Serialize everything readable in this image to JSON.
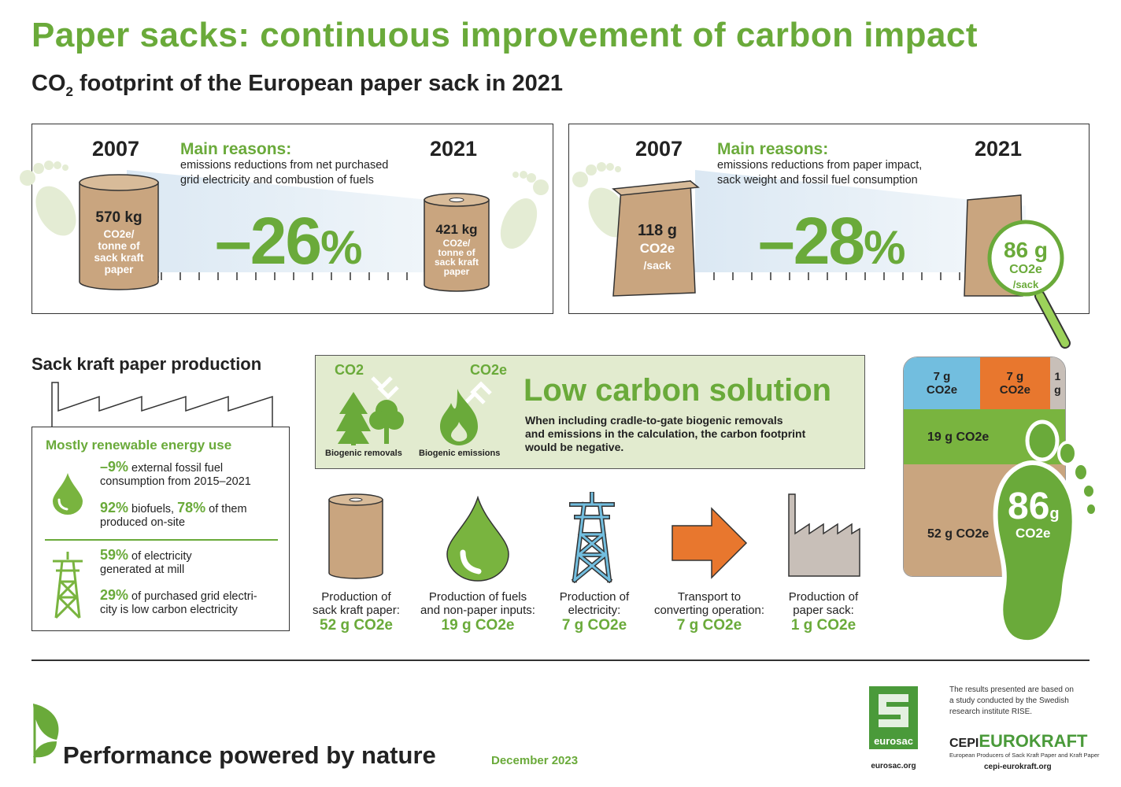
{
  "header": {
    "title": "Paper sacks: continuous improvement of carbon impact",
    "subtitle_prefix": "CO",
    "subtitle_sub": "2",
    "subtitle_rest": " footprint of the European paper sack in 2021"
  },
  "comparison_paper": {
    "year_start": "2007",
    "year_end": "2021",
    "reasons_title": "Main reasons:",
    "reasons_line1": "emissions reductions from net purchased",
    "reasons_line2": "grid electricity and combustion of fuels",
    "change_number": "–26",
    "change_sign": "%",
    "start_value": "570 kg",
    "start_unit_lines": [
      "CO2e/",
      "tonne of",
      "sack kraft",
      "paper"
    ],
    "end_value": "421 kg",
    "end_unit_lines": [
      "CO2e/",
      "tonne of",
      "sack kraft",
      "paper"
    ]
  },
  "comparison_sack": {
    "year_start": "2007",
    "year_end": "2021",
    "reasons_title": "Main reasons:",
    "reasons_line1": "emissions reductions from paper impact,",
    "reasons_line2": "sack weight and fossil fuel consumption",
    "change_number": "–28",
    "change_sign": "%",
    "start_value": "118 g",
    "start_unit1": "CO2e",
    "start_unit2": "/sack",
    "end_value": "86 g",
    "end_unit1": "CO2e",
    "end_unit2": "/sack"
  },
  "production": {
    "title": "Sack kraft paper production",
    "box_title": "Mostly renewable energy use",
    "fact1_value": "–9%",
    "fact1_text1": " external fossil fuel",
    "fact1_text2": "consumption from 2015–2021",
    "fact2_value": "92%",
    "fact2_text1": " biofuels, ",
    "fact2_value2": "78%",
    "fact2_text2": " of them",
    "fact2_text3": "produced on-site",
    "fact3_value": "59%",
    "fact3_text1": " of electricity",
    "fact3_text2": "generated at mill",
    "fact4_value": "29%",
    "fact4_text1": " of purchased grid electri-",
    "fact4_text2": "city is low carbon electricity"
  },
  "low_carbon": {
    "co2_label": "CO2",
    "co2e_label": "CO2e",
    "title": "Low carbon solution",
    "text_line1": "When including cradle-to-gate biogenic removals",
    "text_line2": "and emissions in the calculation, the carbon footprint",
    "text_line3": "would be negative.",
    "icon1_label": "Biogenic removals",
    "icon2_label": "Biogenic emissions"
  },
  "steps": [
    {
      "label1": "Production of",
      "label2": "sack kraft paper:",
      "value": "52 g CO2e"
    },
    {
      "label1": "Production of fuels",
      "label2": "and non-paper inputs:",
      "value": "19 g CO2e"
    },
    {
      "label1": "Production of",
      "label2": "electricity:",
      "value": "7 g CO2e"
    },
    {
      "label1": "Transport to",
      "label2": "converting operation:",
      "value": "7 g CO2e"
    },
    {
      "label1": "Production of",
      "label2": "paper sack:",
      "value": "1 g CO2e"
    }
  ],
  "breakdown": {
    "seg_electricity": "7 g CO2e",
    "seg_transport": "7 g CO2e",
    "seg_sack": "1 g",
    "seg_fuels": "19 g CO2e",
    "seg_paper": "52 g CO2e",
    "total_number": "86",
    "total_unit": "g",
    "total_co2e": "CO2e",
    "colors": {
      "electricity": "#72bedf",
      "transport": "#e8772e",
      "sack": "#c8bfb8",
      "fuels": "#79b43f",
      "paper": "#c9a57f",
      "footprint": "#6aaa3a"
    }
  },
  "footer": {
    "slogan": "Performance powered by nature",
    "date": "December 2023",
    "eurosac_name": "eurosac",
    "eurosac_url": "eurosac.org",
    "note1": "The results presented are based on",
    "note2": "a study conducted by the Swedish",
    "note3": "research institute RISE.",
    "cepi_prefix": "CEPI",
    "cepi_name": "EUROKRAFT",
    "cepi_tagline": "European Producers of Sack Kraft Paper and Kraft Paper",
    "cepi_url": "cepi-eurokraft.org"
  }
}
